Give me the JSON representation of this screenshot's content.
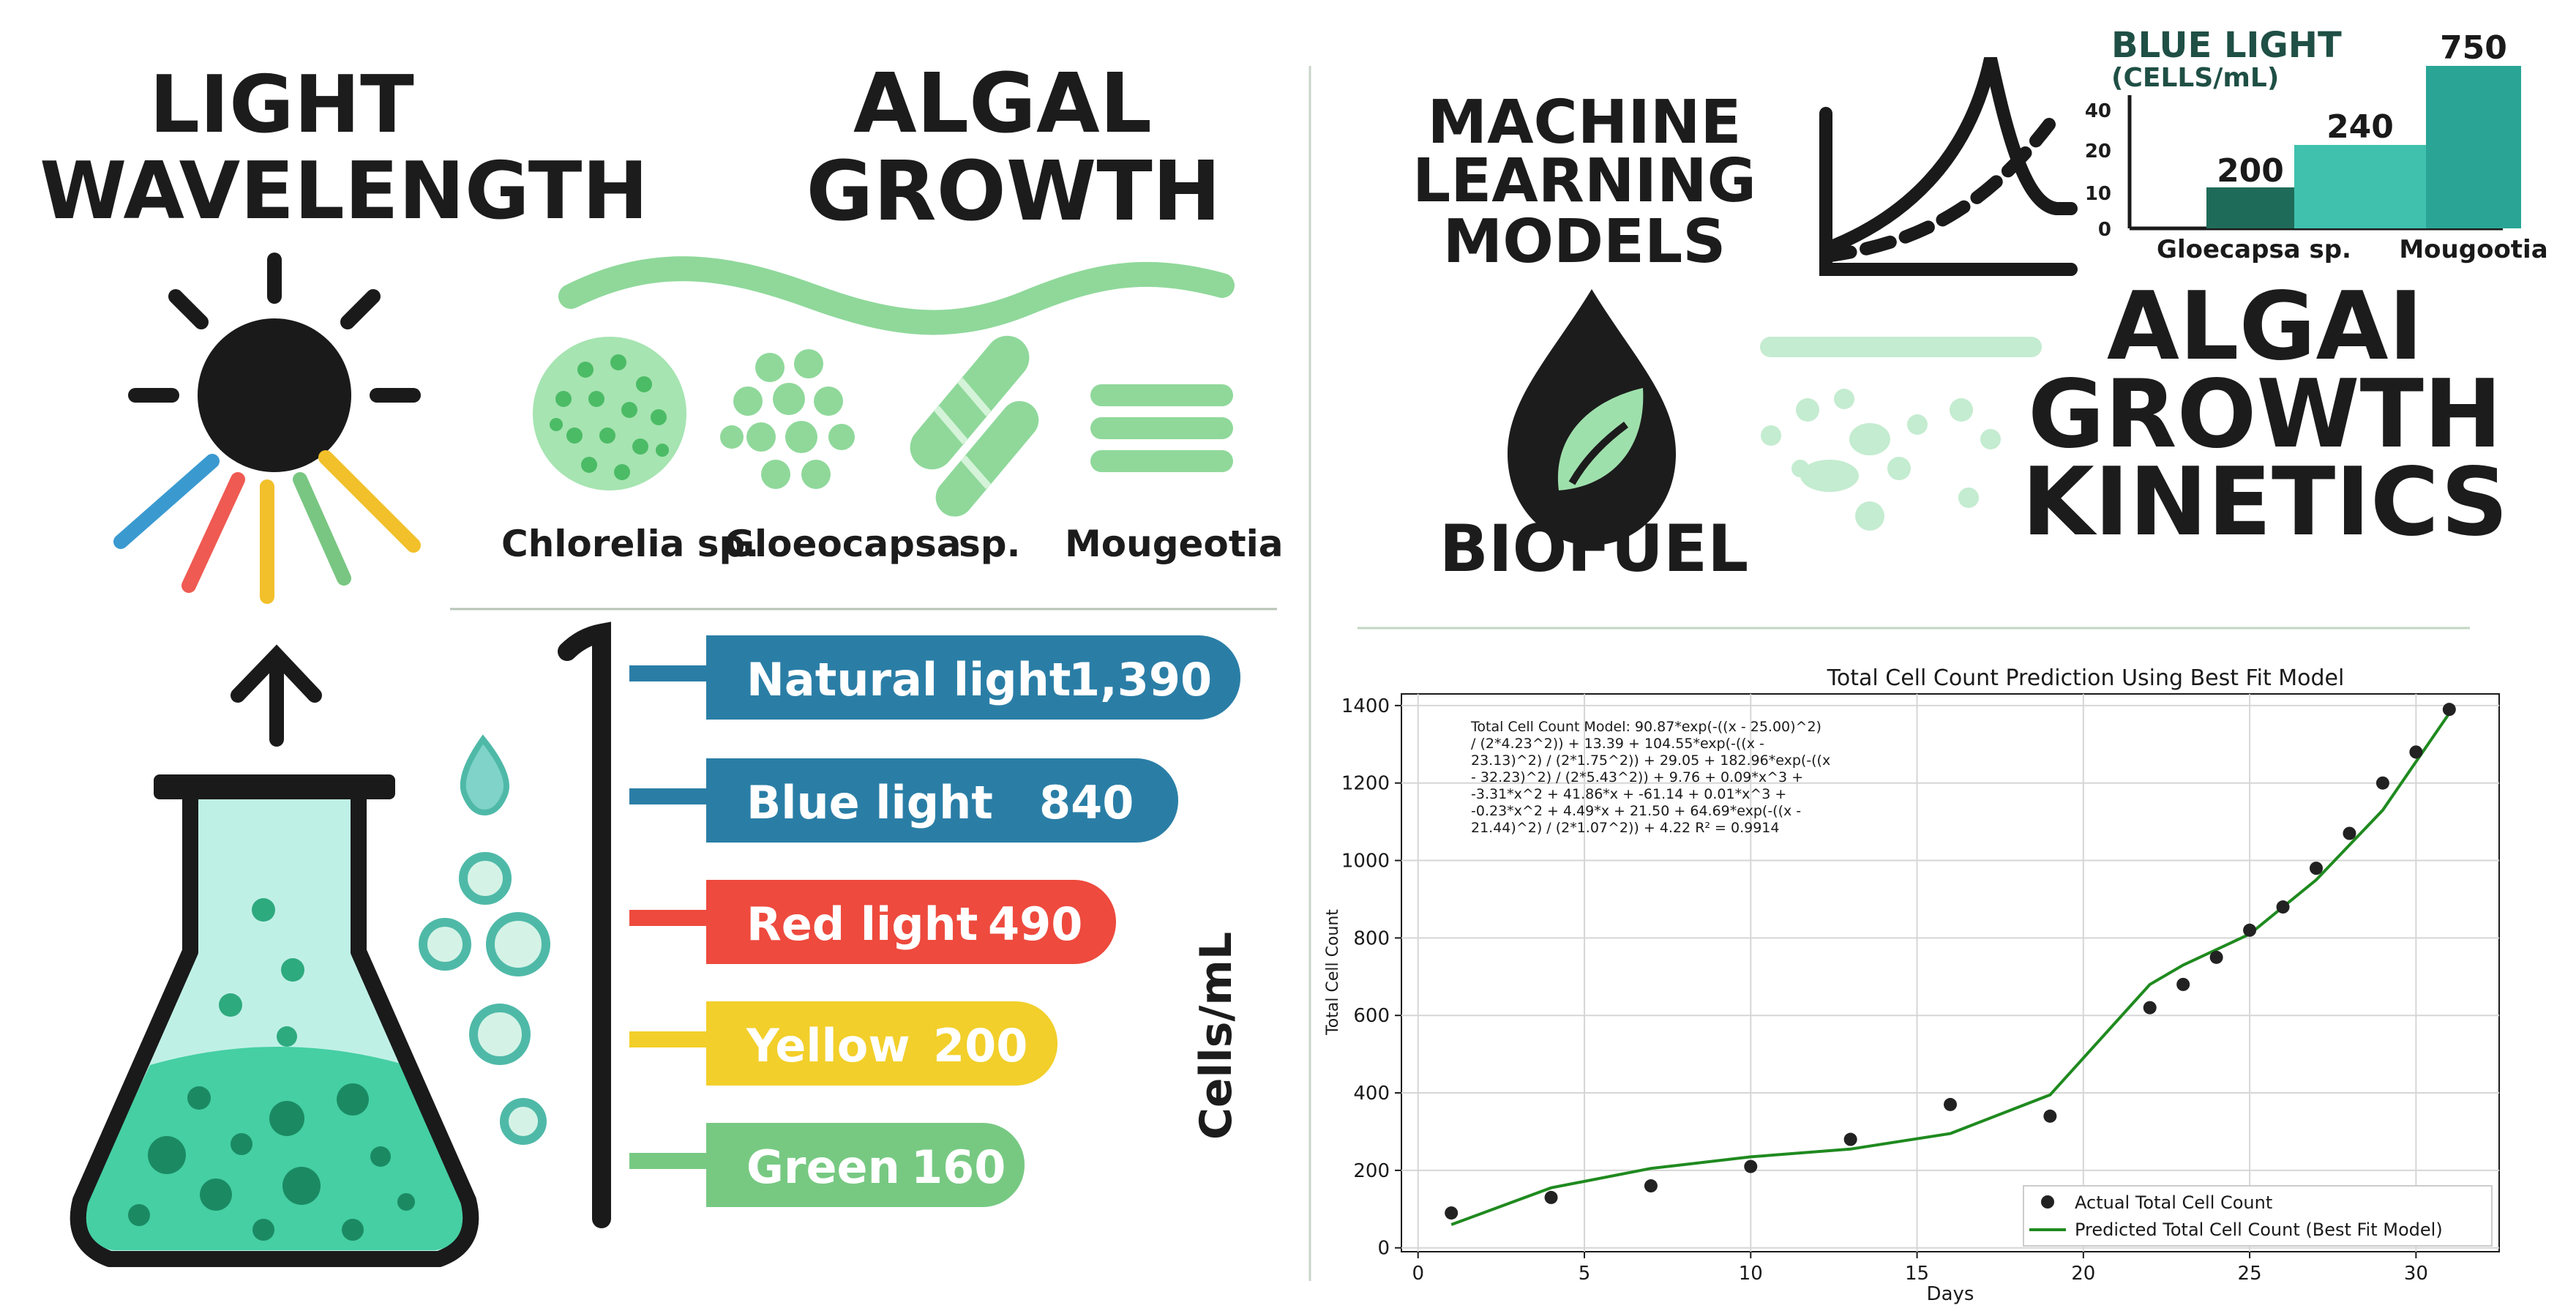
{
  "left_panel": {
    "heading_1": [
      "LIGHT",
      "WAVELENGTH"
    ],
    "heading_2": [
      "ALGAL",
      "GROWTH"
    ],
    "species": [
      "Chlorelia sp.",
      "Gloeocapsa",
      "sp.",
      "Mougeotia"
    ],
    "y_axis_label": "Cells/mL",
    "colors": {
      "blue": "#2a7ea6",
      "red": "#ee4a3e",
      "yellow": "#f2cf2a",
      "green": "#77c982",
      "teal": "#4dd0a8",
      "light_green": "#8fd89a"
    },
    "bars": [
      {
        "label": "Natural light",
        "value": "1,390",
        "color": "#2a7ea6"
      },
      {
        "label": "Blue light",
        "value": "840",
        "color": "#2a7ea6"
      },
      {
        "label": "Red light",
        "value": "490",
        "color": "#ee4a3e"
      },
      {
        "label": "Yellow",
        "value": "200",
        "color": "#f2cf2a"
      },
      {
        "label": "Green",
        "value": "160",
        "color": "#77c982"
      }
    ]
  },
  "right_panel": {
    "heading_ml": [
      "MACHINE",
      "LEARNING",
      "MODELS"
    ],
    "heading_biofuel": "BIOFUEL",
    "heading_kinetics": [
      "ALGAI",
      "GROWTH",
      "KINETICS"
    ]
  },
  "chart_data": [
    {
      "type": "bar",
      "title": "BLUE LIGHT",
      "subtitle": "(CELLS/mL)",
      "categories": [
        "Gloecapsa sp.",
        "Mougootia"
      ],
      "series": [
        {
          "values": [
            200,
            750
          ],
          "data_labels": [
            "200",
            "750"
          ],
          "color": "#1f6b59"
        },
        {
          "values": [
            240,
            null
          ],
          "data_labels": [
            "240",
            ""
          ],
          "color": "#3fc1ad"
        }
      ],
      "y_ticks": [
        "0",
        "10",
        "20",
        "40"
      ],
      "colors": {
        "dark": "#1f6b59",
        "light": "#3fc1ad",
        "tall": "#2aa595"
      }
    },
    {
      "type": "line",
      "title": "Total Cell Count Prediction Using Best Fit Model",
      "xlabel": "Days",
      "ylabel": "Total Cell Count",
      "xlim": [
        -0.5,
        32.5
      ],
      "ylim": [
        -10,
        1430
      ],
      "x_ticks": [
        0,
        5,
        10,
        15,
        20,
        25,
        30
      ],
      "y_ticks": [
        0,
        200,
        400,
        600,
        800,
        1000,
        1200,
        1400
      ],
      "grid": true,
      "legend_position": "lower-right",
      "model_text": [
        "Total Cell Count Model: 90.87*exp(-((x - 25.00)^2)",
        "/ (2*4.23^2)) + 13.39 + 104.55*exp(-((x -",
        "23.13)^2) / (2*1.75^2)) + 29.05 + 182.96*exp(-((x",
        "- 32.23)^2) / (2*5.43^2)) + 9.76 + 0.09*x^3 +",
        "-3.31*x^2 + 41.86*x + -61.14 + 0.01*x^3 +",
        "-0.23*x^2 + 4.49*x + 21.50 + 64.69*exp(-((x -",
        "21.44)^2) / (2*1.07^2)) + 4.22 R² = 0.9914"
      ],
      "series": [
        {
          "name": "Actual Total Cell Count",
          "kind": "scatter",
          "color": "#222222",
          "x": [
            1,
            4,
            7,
            10,
            13,
            16,
            19,
            22,
            23,
            24,
            25,
            26,
            27,
            28,
            29,
            30,
            31
          ],
          "y": [
            90,
            130,
            160,
            210,
            280,
            370,
            340,
            620,
            680,
            750,
            820,
            880,
            980,
            1070,
            1200,
            1280,
            1390
          ]
        },
        {
          "name": "Predicted Total Cell Count (Best Fit Model)",
          "kind": "line",
          "color": "#1f8a1f",
          "x": [
            1,
            4,
            7,
            10,
            13,
            16,
            19,
            22,
            23,
            25,
            27,
            29,
            31
          ],
          "y": [
            60,
            155,
            205,
            235,
            255,
            295,
            395,
            680,
            730,
            810,
            950,
            1130,
            1380
          ]
        }
      ]
    }
  ]
}
